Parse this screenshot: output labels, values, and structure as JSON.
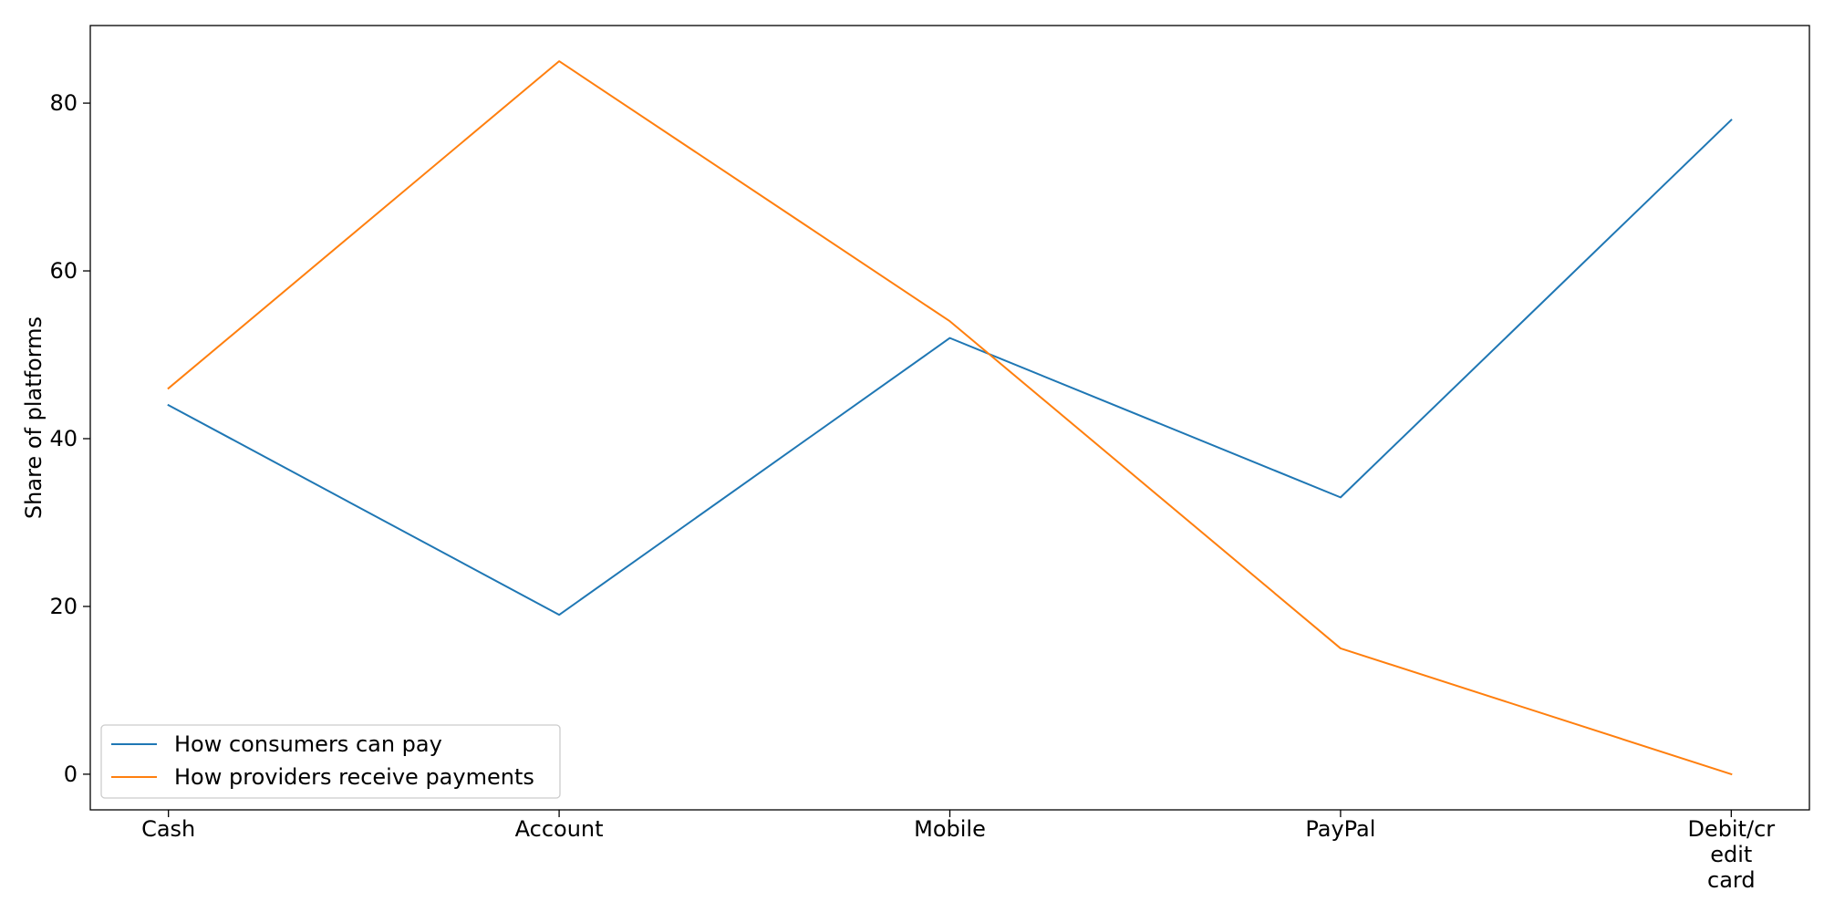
{
  "chart_data": {
    "type": "line",
    "title": "",
    "xlabel": "",
    "ylabel": "Share of platforms",
    "categories": [
      "Cash",
      "Account",
      "Mobile",
      "PayPal",
      "Debit/credit card"
    ],
    "category_lines": [
      [
        "Cash"
      ],
      [
        "Account"
      ],
      [
        "Mobile"
      ],
      [
        "PayPal"
      ],
      [
        "Debit/cr",
        "edit",
        "card"
      ]
    ],
    "series": [
      {
        "name": "How consumers can pay",
        "values": [
          44,
          19,
          52,
          33,
          78
        ],
        "color": "#1f77b4"
      },
      {
        "name": "How providers receive payments",
        "values": [
          46,
          85,
          54,
          15,
          0
        ],
        "color": "#ff7f0e"
      }
    ],
    "ylim": [
      -4.25,
      89.25
    ],
    "yticks": [
      0,
      20,
      40,
      60,
      80
    ],
    "grid": false,
    "legend_position": "lower-left"
  }
}
